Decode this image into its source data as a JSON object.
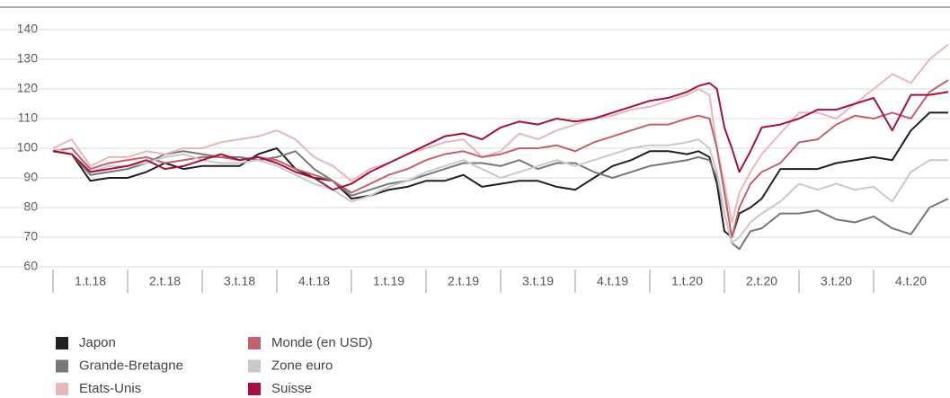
{
  "chart_data": {
    "type": "line",
    "x": [
      0,
      0.25,
      0.5,
      0.75,
      1,
      1.25,
      1.5,
      1.75,
      2,
      2.25,
      2.5,
      2.75,
      3,
      3.25,
      3.5,
      3.75,
      4,
      4.25,
      4.5,
      4.75,
      5,
      5.25,
      5.5,
      5.75,
      6,
      6.25,
      6.5,
      6.75,
      7,
      7.25,
      7.5,
      7.75,
      8,
      8.25,
      8.5,
      8.65,
      8.8,
      8.9,
      9,
      9.1,
      9.2,
      9.35,
      9.5,
      9.75,
      10,
      10.25,
      10.5,
      10.75,
      11,
      11.25,
      11.5,
      11.75,
      12
    ],
    "xlim": [
      0,
      12
    ],
    "xticks": [
      {
        "value": 0.5,
        "label": "1.t.18"
      },
      {
        "value": 1.5,
        "label": "2.t.18"
      },
      {
        "value": 2.5,
        "label": "3.t.18"
      },
      {
        "value": 3.5,
        "label": "4.t.18"
      },
      {
        "value": 4.5,
        "label": "1.t.19"
      },
      {
        "value": 5.5,
        "label": "2.t.19"
      },
      {
        "value": 6.5,
        "label": "3.t.19"
      },
      {
        "value": 7.5,
        "label": "4.t.19"
      },
      {
        "value": 8.5,
        "label": "1.t.20"
      },
      {
        "value": 9.5,
        "label": "2.t.20"
      },
      {
        "value": 10.5,
        "label": "3.t.20"
      },
      {
        "value": 11.5,
        "label": "4.t.20"
      }
    ],
    "ylim": [
      60,
      140
    ],
    "yticks": [
      60,
      70,
      80,
      90,
      100,
      110,
      120,
      130,
      140
    ],
    "grid": true,
    "series": [
      {
        "name": "Japon",
        "color": "#231f20",
        "values": [
          99,
          98,
          89,
          90,
          90,
          92,
          95,
          93,
          94,
          94,
          94,
          98,
          100,
          93,
          90,
          89,
          83,
          84,
          86,
          87,
          89,
          89,
          91,
          87,
          88,
          89,
          89,
          87,
          86,
          90,
          94,
          96,
          99,
          99,
          98,
          99,
          97,
          88,
          72,
          70,
          78,
          80,
          83,
          93,
          93,
          93,
          95,
          96,
          97,
          96,
          106,
          112,
          112
        ]
      },
      {
        "name": "Grande-Bretagne",
        "color": "#77777a",
        "values": [
          99,
          98,
          91,
          92,
          93,
          95,
          98,
          99,
          98,
          97,
          97,
          96,
          97,
          99,
          93,
          89,
          84,
          86,
          88,
          89,
          91,
          93,
          95,
          95,
          94,
          96,
          93,
          95,
          95,
          92,
          90,
          92,
          94,
          95,
          96,
          97,
          96,
          90,
          78,
          68,
          66,
          72,
          73,
          78,
          78,
          79,
          76,
          75,
          77,
          73,
          71,
          80,
          83
        ]
      },
      {
        "name": "Etats-Unis",
        "color": "#e6b8b7",
        "values": [
          100,
          103,
          94,
          97,
          97,
          99,
          98,
          100,
          100,
          102,
          103,
          104,
          106,
          103,
          97,
          94,
          89,
          93,
          95,
          98,
          100,
          102,
          103,
          97,
          99,
          105,
          103,
          106,
          108,
          110,
          111,
          113,
          114,
          116,
          118,
          120,
          118,
          100,
          88,
          75,
          85,
          92,
          98,
          105,
          112,
          112,
          110,
          115,
          120,
          125,
          122,
          130,
          135
        ]
      },
      {
        "name": "Monde (en USD)",
        "color": "#c0626b",
        "values": [
          99,
          100,
          93,
          95,
          96,
          97,
          95,
          96,
          97,
          97,
          96,
          97,
          96,
          93,
          91,
          89,
          85,
          88,
          91,
          93,
          96,
          98,
          99,
          97,
          98,
          100,
          100,
          101,
          99,
          102,
          104,
          106,
          108,
          108,
          110,
          111,
          110,
          100,
          85,
          70,
          80,
          88,
          92,
          95,
          102,
          103,
          108,
          111,
          110,
          112,
          110,
          119,
          123
        ]
      },
      {
        "name": "Zone euro",
        "color": "#c9c9c9",
        "values": [
          100,
          98,
          92,
          94,
          94,
          95,
          97,
          98,
          96,
          95,
          95,
          96,
          94,
          91,
          88,
          86,
          82,
          84,
          87,
          89,
          92,
          94,
          96,
          93,
          90,
          92,
          94,
          96,
          94,
          96,
          98,
          100,
          101,
          101,
          102,
          103,
          100,
          92,
          78,
          68,
          70,
          75,
          78,
          82,
          88,
          86,
          88,
          86,
          87,
          82,
          92,
          96,
          96
        ]
      },
      {
        "name": "Suisse",
        "color": "#a3123f",
        "values": [
          99,
          98,
          92,
          93,
          94,
          96,
          93,
          94,
          96,
          98,
          96,
          97,
          95,
          92,
          90,
          86,
          88,
          92,
          95,
          98,
          101,
          104,
          105,
          103,
          107,
          109,
          108,
          110,
          109,
          110,
          112,
          114,
          116,
          117,
          119,
          121,
          122,
          120,
          107,
          100,
          92,
          99,
          107,
          108,
          110,
          113,
          113,
          115,
          117,
          106,
          118,
          118,
          119
        ]
      }
    ]
  }
}
